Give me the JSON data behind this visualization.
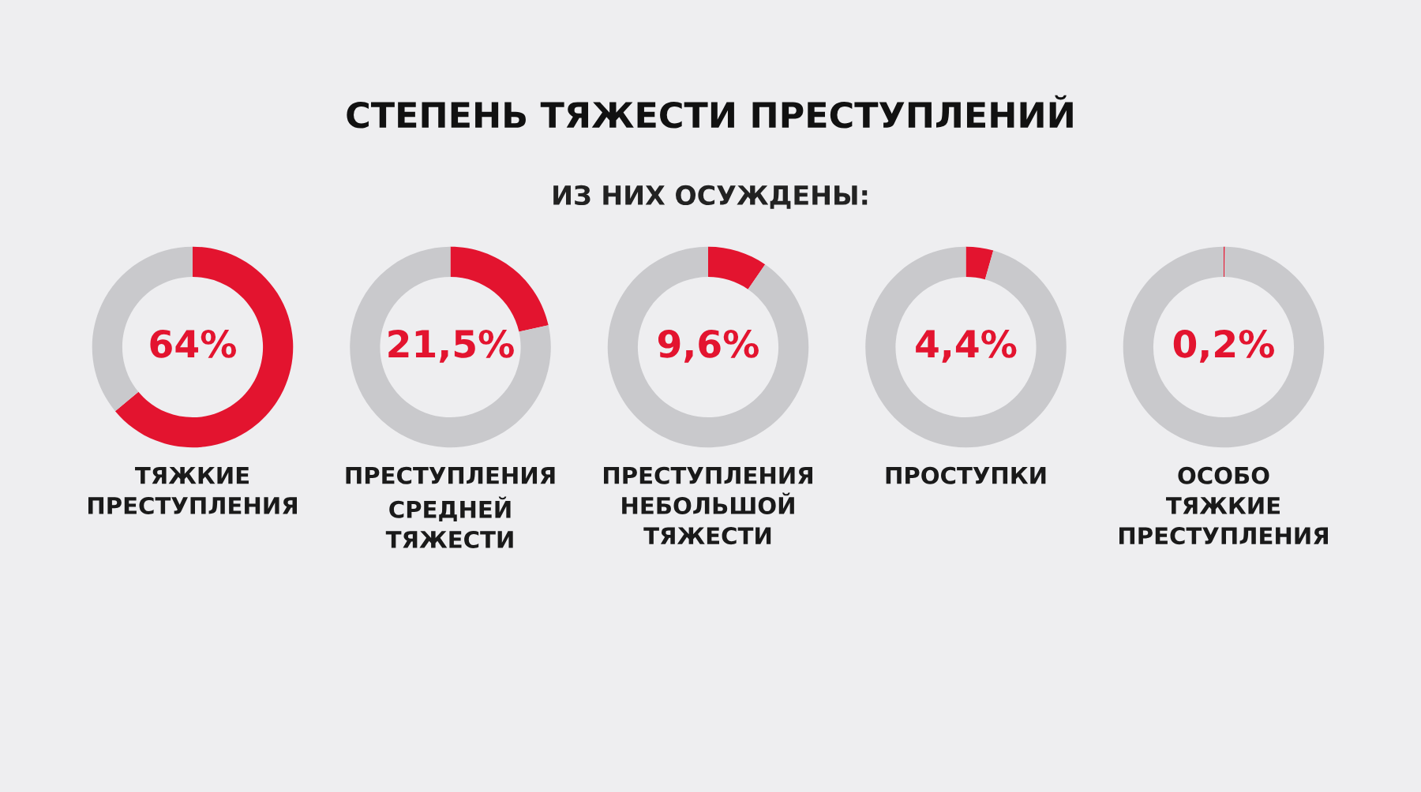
{
  "chart_data": [
    {
      "type": "other",
      "title": "СТЕПЕНЬ ТЯЖЕСТИ ПРЕСТУПЛЕНИЙ",
      "subtitle": "ИЗ НИХ ОСУЖДЕНЫ:"
    },
    {
      "type": "donut",
      "xlabel": "ТЯЖКИЕ\nПРЕСТУПЛЕНИЯ",
      "categories": [
        null,
        null
      ],
      "values": [
        64,
        36
      ],
      "colors": [
        "#e3142f",
        "#c9c9cc"
      ],
      "annotations": [
        "64%"
      ]
    },
    {
      "type": "donut",
      "xlabel": "ПРЕСТУПЛЕНИЯ\nСРЕДНЕЙ\nТЯЖЕСТИ",
      "categories": [
        null,
        null
      ],
      "values": [
        21.5,
        78.5
      ],
      "colors": [
        "#e3142f",
        "#c9c9cc"
      ],
      "annotations": [
        "21,5%"
      ]
    },
    {
      "type": "donut",
      "xlabel": "ПРЕСТУПЛЕНИЯ\nНЕБОЛЬШОЙ\nТЯЖЕСТИ",
      "categories": [
        null,
        null
      ],
      "values": [
        9.6,
        90.4
      ],
      "colors": [
        "#e3142f",
        "#c9c9cc"
      ],
      "annotations": [
        "9,6%"
      ]
    },
    {
      "type": "donut",
      "xlabel": "ПРОСТУПКИ",
      "categories": [
        null,
        null
      ],
      "values": [
        4.4,
        95.6
      ],
      "colors": [
        "#e3142f",
        "#c9c9cc"
      ],
      "annotations": [
        "4,4%"
      ]
    },
    {
      "type": "donut",
      "xlabel": "ОСОБО\nТЯЖКИЕ\nПРЕСТУПЛЕНИЯ",
      "categories": [
        null,
        null
      ],
      "values": [
        0.2,
        99.8
      ],
      "colors": [
        "#e3142f",
        "#c9c9cc"
      ],
      "annotations": [
        "0,2%"
      ]
    }
  ]
}
